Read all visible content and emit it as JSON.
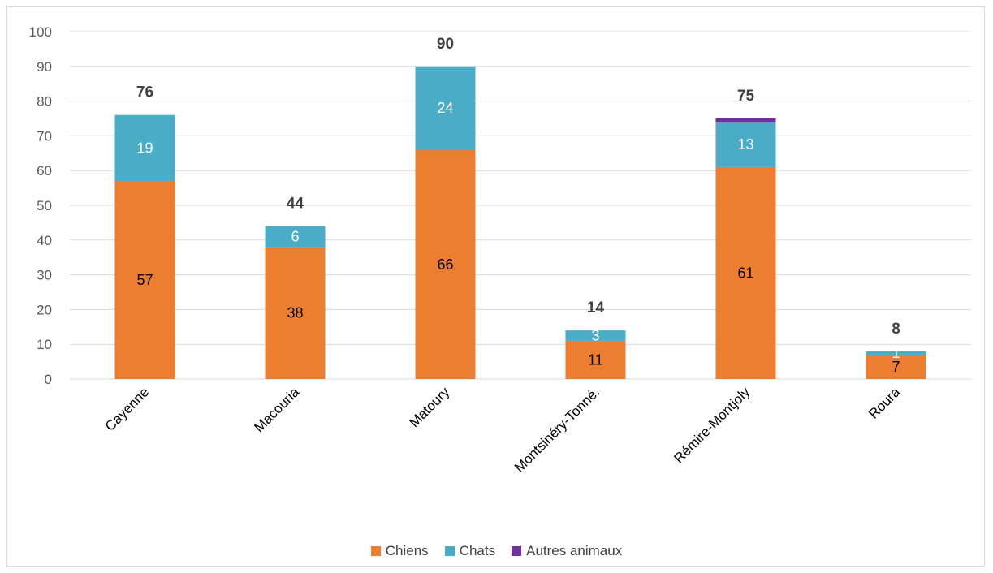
{
  "chart_data": {
    "type": "bar",
    "stacked": true,
    "title": "",
    "xlabel": "",
    "ylabel": "",
    "ylim": [
      0,
      100
    ],
    "yticks": [
      0,
      10,
      20,
      30,
      40,
      50,
      60,
      70,
      80,
      90,
      100
    ],
    "categories": [
      "Cayenne",
      "Macouria",
      "Matoury",
      "Montsinéry-Tonné.",
      "Rémire-Montjoly",
      "Roura"
    ],
    "series": [
      {
        "name": "Chiens",
        "color": "#ED7D31",
        "label_color": "#000000",
        "values": [
          57,
          38,
          66,
          11,
          61,
          7
        ],
        "labels": [
          "57",
          "38",
          "66",
          "11",
          "61",
          "7"
        ]
      },
      {
        "name": "Chats",
        "color": "#4BACC6",
        "label_color": "#ffffff",
        "values": [
          19,
          6,
          24,
          3,
          13,
          1
        ],
        "labels": [
          "19",
          "6",
          "24",
          "3",
          "13",
          "1"
        ]
      },
      {
        "name": "Autres animaux",
        "color": "#7030A0",
        "label_color": "#ffffff",
        "values": [
          0,
          0,
          0,
          0,
          1,
          0
        ],
        "labels": [
          "",
          "",
          "",
          "",
          "",
          ""
        ]
      }
    ],
    "totals": [
      "76",
      "44",
      "90",
      "14",
      "75",
      "8"
    ],
    "grid": true,
    "legend_position": "bottom"
  }
}
